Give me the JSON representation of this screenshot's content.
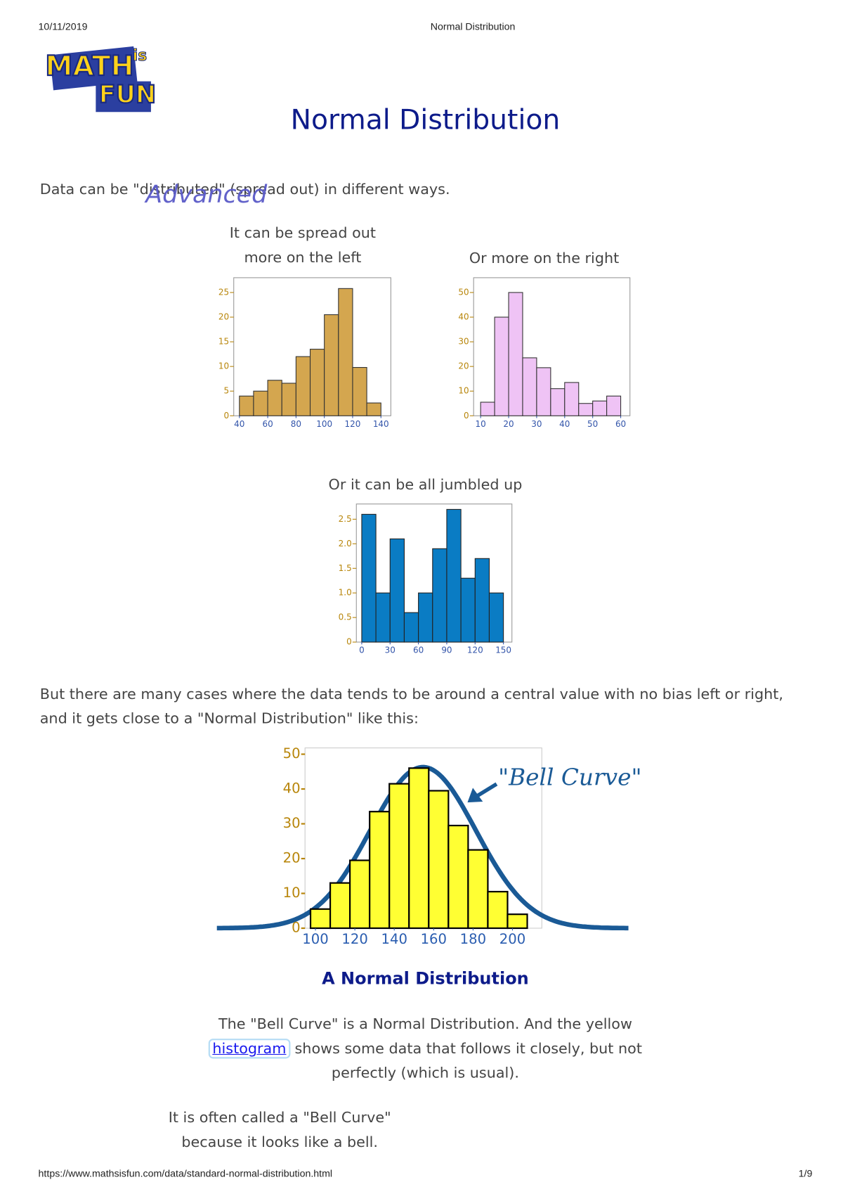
{
  "header": {
    "date": "10/11/2019",
    "title": "Normal Distribution"
  },
  "logo": {
    "math": "MATH",
    "is": "is",
    "fun": "FUN"
  },
  "page_title": "Normal Distribution",
  "badge": "Advanced",
  "intro": "Data can be \"distributed\" (spread out) in different ways.",
  "chart_data": [
    {
      "type": "histogram",
      "title": "It can be spread out more on the left",
      "color": "#d4a64f",
      "bins": [
        40,
        50,
        60,
        70,
        80,
        90,
        100,
        110,
        120,
        130,
        140
      ],
      "values": [
        4,
        5,
        7.2,
        6.6,
        12,
        13.5,
        20.5,
        25.8,
        9.8,
        2.6
      ],
      "xlim": [
        36,
        147
      ],
      "ylim": [
        0,
        28
      ],
      "xticks": [
        40,
        60,
        80,
        100,
        120,
        140
      ],
      "yticks": [
        0,
        5,
        10,
        15,
        20,
        25
      ]
    },
    {
      "type": "histogram",
      "title": "Or more on the right",
      "color": "#efc3f5",
      "bins": [
        10,
        15,
        20,
        25,
        30,
        35,
        40,
        45,
        50,
        55,
        60
      ],
      "values": [
        5.5,
        40,
        50,
        23.5,
        19.5,
        11,
        13.5,
        5,
        6,
        8
      ],
      "xlim": [
        7.5,
        63.3
      ],
      "ylim": [
        0,
        56
      ],
      "xticks": [
        10,
        20,
        30,
        40,
        50,
        60
      ],
      "yticks": [
        0,
        10,
        20,
        30,
        40,
        50
      ]
    },
    {
      "type": "histogram",
      "title": "Or it can be all jumbled up",
      "color": "#0a7cc4",
      "bins": [
        0,
        15,
        30,
        45,
        60,
        75,
        90,
        105,
        120,
        135,
        150
      ],
      "values": [
        2.6,
        1.0,
        2.1,
        0.6,
        1.0,
        1.9,
        2.7,
        1.3,
        1.7,
        1.0
      ],
      "xlim": [
        -5.7,
        159
      ],
      "ylim": [
        0,
        2.81
      ],
      "xticks": [
        0,
        30,
        60,
        90,
        120,
        150
      ],
      "yticks": [
        0,
        0.5,
        {
          "value": 1,
          "label": "1.0"
        },
        1.5,
        {
          "value": 2,
          "label": "2.0"
        },
        2.5
      ]
    },
    {
      "type": "histogram",
      "title": "A Normal Distribution",
      "annotation": "\"Bell Curve\"",
      "color": "#ffff33",
      "bins": [
        97.5,
        107.5,
        117.5,
        127.5,
        137.5,
        147.5,
        157.5,
        167.5,
        177.5,
        187.5,
        197.5,
        207.5
      ],
      "values": [
        5.5,
        13,
        19.5,
        33.5,
        41.5,
        46,
        39.5,
        29.5,
        22.5,
        10.5,
        4
      ],
      "xlim": [
        94.7,
        214.9
      ],
      "ylim": [
        0,
        51.8
      ],
      "xticks": [
        100,
        120,
        140,
        160,
        180,
        200
      ],
      "yticks": [
        0,
        10,
        20,
        30,
        40,
        50
      ]
    }
  ],
  "paragraph1": "But there are many cases where the data tends to be around a central value with no bias left or right, and it gets close to a \"Normal Distribution\" like this:",
  "paragraph2": {
    "before": "The \"Bell Curve\" is a Normal Distribution. And the yellow",
    "link": "histogram",
    "after": "shows some data that follows it closely, but not perfectly (which is usual)."
  },
  "paragraph3": "It is often called a \"Bell Curve\" because it looks like a bell.",
  "footer": {
    "url": "https://www.mathsisfun.com/data/standard-normal-distribution.html",
    "page": "1/9"
  }
}
